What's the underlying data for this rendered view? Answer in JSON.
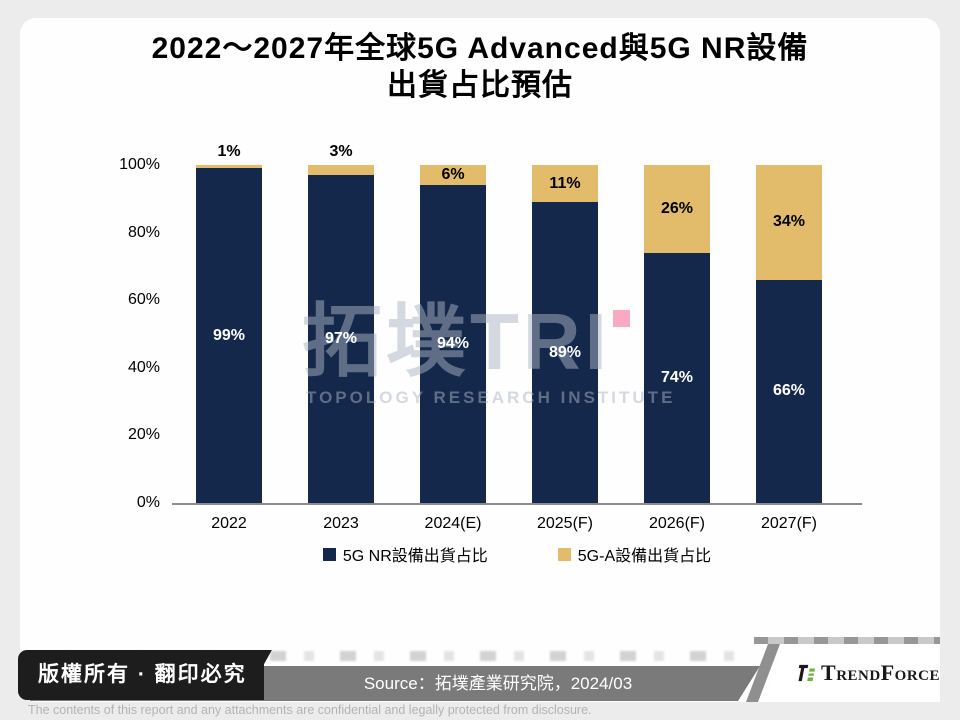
{
  "header": {
    "title_line1": "2022～2027年全球5G Advanced與5G NR設備",
    "title_line2": "出貨占比預估"
  },
  "chart_data": {
    "type": "bar",
    "stacked": true,
    "title": "2022～2027年全球5G Advanced與5G NR設備出貨占比預估",
    "categories": [
      "2022",
      "2023",
      "2024(E)",
      "2025(F)",
      "2026(F)",
      "2027(F)"
    ],
    "series": [
      {
        "name": "5G NR設備出貨占比",
        "color": "#14284B",
        "label_color": "#FFFFFF",
        "values": [
          99,
          97,
          94,
          89,
          74,
          66
        ]
      },
      {
        "name": "5G-A設備出貨占比",
        "color": "#E2BC6B",
        "label_color": "#000000",
        "values": [
          1,
          3,
          6,
          11,
          26,
          34
        ]
      }
    ],
    "unit": "%",
    "ylim": [
      0,
      100
    ],
    "yticks": [
      "100%",
      "80%",
      "60%",
      "40%",
      "20%",
      "0%"
    ],
    "grid": false,
    "legend_position": "bottom",
    "xlabel": "",
    "ylabel": ""
  },
  "watermark": {
    "logo_text": "拓墣TRI",
    "subtitle": "TOPOLOGY RESEARCH INSTITUTE"
  },
  "footer": {
    "copyright": "版權所有 · 翻印必究",
    "source": "Source：拓墣產業研究院，2024/03",
    "brand": "TrendForce",
    "disclaimer": "The contents of this report and any attachments are confidential and legally protected from disclosure."
  },
  "colors": {
    "navy": "#14284B",
    "gold": "#E2BC6B",
    "pink": "#F9A9C2",
    "footer_black": "#1D1D1D",
    "footer_gray": "#7A7A7A",
    "brand_green": "#6CB33F",
    "axis_line": "#8C8C8C"
  }
}
